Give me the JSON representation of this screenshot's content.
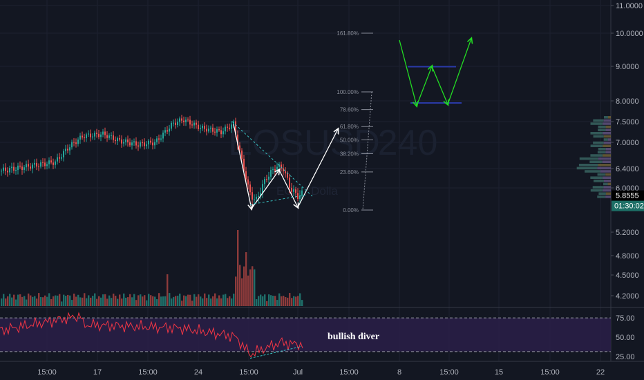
{
  "chart_data": {
    "type": "candlestick",
    "symbol": "EOSUSD",
    "interval": "240",
    "watermark_sub": "EOS / Dolla",
    "price_axis": {
      "ticks": [
        "11.0000",
        "10.0000",
        "9.0000",
        "8.0000",
        "7.5000",
        "7.0000",
        "6.4000",
        "6.0000",
        "5.2000",
        "4.8000",
        "4.5000",
        "4.2000"
      ],
      "last_price": "5.8555",
      "countdown": "01:30:02",
      "last_color": "#26a69a"
    },
    "time_axis": {
      "ticks": [
        "15:00",
        "17",
        "15:00",
        "24",
        "15:00",
        "Jul",
        "15:00",
        "8",
        "15:00",
        "15",
        "15:00",
        "22"
      ]
    },
    "fib_levels": [
      {
        "label": "161.80%",
        "price": 10.0
      },
      {
        "label": "100.00%",
        "price": 8.26
      },
      {
        "label": "78.60%",
        "price": 7.79
      },
      {
        "label": "61.80%",
        "price": 7.38
      },
      {
        "label": "50.00%",
        "price": 7.06
      },
      {
        "label": "38.20%",
        "price": 6.74
      },
      {
        "label": "23.60%",
        "price": 6.33
      },
      {
        "label": "0.00%",
        "price": 5.6
      }
    ],
    "rsi": {
      "ticks": [
        "75.00",
        "50.00",
        "25.00"
      ],
      "upper": 70,
      "lower": 30,
      "annotation": "bullish diver"
    },
    "colors": {
      "up": "#26a69a",
      "down": "#ef5350",
      "w_pattern": "#22dd22",
      "rsi_line": "#f23645",
      "rsi_band": "#2a1f48",
      "background": "#131722"
    }
  }
}
